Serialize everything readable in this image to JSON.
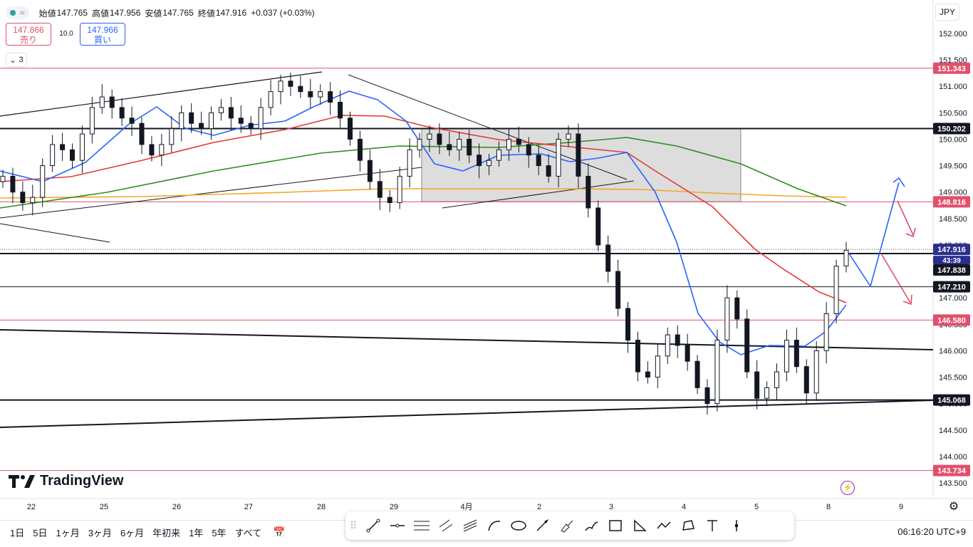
{
  "header": {
    "open_label": "始値",
    "open_value": "147.765",
    "high_label": "高値",
    "high_value": "147.956",
    "low_label": "安値",
    "low_value": "147.765",
    "close_label": "終値",
    "close_value": "147.916",
    "change": "+0.037 (+0.03%)",
    "wave_symbol": "≈"
  },
  "trade": {
    "sell_price": "147.866",
    "sell_label": "売り",
    "spread": "10.0",
    "buy_price": "147.966",
    "buy_label": "買い",
    "collapse_count": "3",
    "currency": "JPY"
  },
  "logo_text": "TradingView",
  "timeframes": [
    "1日",
    "5日",
    "1ヶ月",
    "3ヶ月",
    "6ヶ月",
    "年初来",
    "1年",
    "5年",
    "すべて"
  ],
  "clock": "06:16:20 UTC+9",
  "colors": {
    "red_line": "#e0506b",
    "blue_ma": "#2962ff",
    "red_ma": "#e53935",
    "green_ma": "#2e8b20",
    "orange_ma": "#f5a623",
    "up": "#131722"
  },
  "chart_data": {
    "type": "candlestick",
    "instrument_currency": "JPY",
    "ylim": [
      143.5,
      152.0
    ],
    "y_ticks": [
      152.0,
      151.5,
      151.0,
      150.5,
      150.0,
      149.5,
      149.0,
      148.5,
      148.0,
      147.5,
      147.0,
      146.5,
      146.0,
      145.5,
      145.0,
      144.5,
      144.0,
      143.5
    ],
    "y_tick_labels": [
      "152.000",
      "151.500",
      "151.000",
      "150.500",
      "150.000",
      "149.500",
      "149.000",
      "148.500",
      "148.000",
      "147.500",
      "147.000",
      "146.500",
      "146.000",
      "145.500",
      "145.000",
      "144.500",
      "144.000",
      "143.500"
    ],
    "x_tick_labels": [
      "22",
      "25",
      "26",
      "27",
      "28",
      "29",
      "4月",
      "2",
      "3",
      "4",
      "5",
      "8",
      "9"
    ],
    "price_tags": [
      {
        "label": "151.343",
        "value": 151.343,
        "style": "red"
      },
      {
        "label": "150.202",
        "value": 150.202,
        "style": "black"
      },
      {
        "label": "148.816",
        "value": 148.816,
        "style": "red"
      },
      {
        "label": "147.916",
        "value": 147.916,
        "style": "current"
      },
      {
        "label": "43:39",
        "value": 147.8,
        "style": "timer"
      },
      {
        "label": "147.838",
        "value": 147.838,
        "style": "black"
      },
      {
        "label": "147.210",
        "value": 147.21,
        "style": "black"
      },
      {
        "label": "146.580",
        "value": 146.58,
        "style": "red"
      },
      {
        "label": "145.068",
        "value": 145.068,
        "style": "black"
      },
      {
        "label": "143.734",
        "value": 143.734,
        "style": "red"
      }
    ],
    "close_path": [
      149.3,
      149.0,
      148.8,
      148.9,
      149.5,
      149.9,
      149.8,
      149.6,
      150.1,
      150.6,
      150.8,
      150.6,
      150.4,
      150.3,
      149.9,
      149.7,
      149.9,
      150.2,
      150.5,
      150.3,
      150.2,
      150.5,
      150.6,
      150.4,
      150.3,
      150.2,
      150.6,
      150.9,
      151.1,
      151.0,
      150.9,
      150.8,
      150.9,
      150.7,
      150.4,
      150.0,
      149.6,
      149.2,
      148.9,
      148.8,
      149.3,
      149.8,
      150.0,
      150.1,
      149.9,
      149.8,
      150.0,
      149.7,
      149.5,
      149.6,
      149.8,
      150.0,
      149.9,
      149.7,
      149.5,
      149.3,
      150.0,
      150.1,
      149.3,
      148.7,
      148.0,
      147.5,
      146.8,
      146.2,
      145.6,
      145.5,
      145.9,
      146.3,
      146.1,
      145.8,
      145.3,
      145.0,
      146.2,
      147.0,
      146.6,
      145.6,
      145.1,
      145.3,
      145.6,
      146.2,
      145.7,
      145.2,
      146.0,
      146.7,
      147.6,
      147.9
    ],
    "moving_averages": [
      {
        "name": "",
        "color": "#2962ff",
        "start_x": 0,
        "end_x": 1188
      },
      {
        "name": "",
        "color": "#e53935",
        "start_x": 0,
        "end_x": 1188
      },
      {
        "name": "",
        "color": "#2e8b20",
        "start_x": 0,
        "end_x": 1188
      },
      {
        "name": "",
        "color": "#f5a623",
        "start_x": 0,
        "end_x": 1188
      }
    ],
    "shaded_zone": {
      "price_from": 148.82,
      "price_to": 150.2
    },
    "horizontal_levels": [
      151.343,
      150.202,
      148.816,
      147.838,
      147.21,
      146.58,
      145.068,
      143.734
    ]
  }
}
